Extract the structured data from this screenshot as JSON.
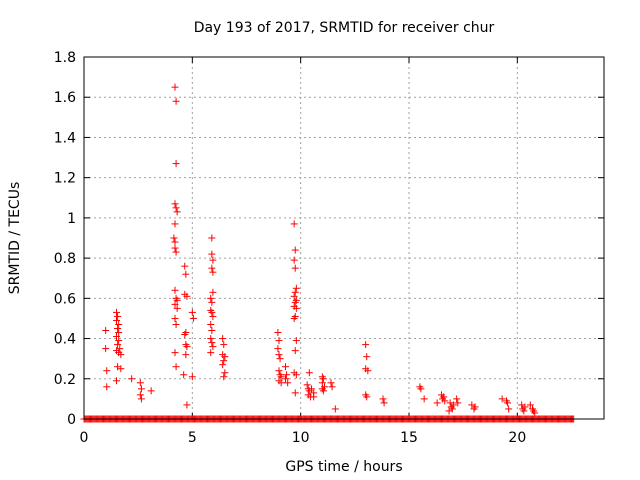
{
  "chart_data": {
    "type": "scatter",
    "title": "Day 193 of 2017, SRMTID for receiver chur",
    "xlabel": "GPS time / hours",
    "ylabel": "SRMTID / TECUs",
    "xlim": [
      0,
      24
    ],
    "ylim": [
      0,
      1.8
    ],
    "xticks": [
      0,
      5,
      10,
      15,
      20
    ],
    "xtick_labels": [
      "0",
      "5",
      "10",
      "15",
      "20"
    ],
    "yticks": [
      0,
      0.2,
      0.4,
      0.6,
      0.8,
      1.0,
      1.2,
      1.4,
      1.6,
      1.8
    ],
    "ytick_labels": [
      "0",
      "0.2",
      "0.4",
      "0.6",
      "0.8",
      "1",
      "1.2",
      "1.4",
      "1.6",
      "1.8"
    ],
    "grid": true,
    "marker": "+",
    "color": "#ff0000",
    "baseline": {
      "x_start": 0,
      "x_end": 22.6,
      "step": 0.05,
      "y": 0
    },
    "series": [
      {
        "name": "SRMTID",
        "points": [
          [
            1.0,
            0.44
          ],
          [
            1.0,
            0.35
          ],
          [
            1.05,
            0.24
          ],
          [
            1.05,
            0.16
          ],
          [
            1.5,
            0.53
          ],
          [
            1.55,
            0.51
          ],
          [
            1.5,
            0.49
          ],
          [
            1.6,
            0.47
          ],
          [
            1.55,
            0.45
          ],
          [
            1.6,
            0.43
          ],
          [
            1.5,
            0.41
          ],
          [
            1.6,
            0.39
          ],
          [
            1.55,
            0.37
          ],
          [
            1.65,
            0.35
          ],
          [
            1.5,
            0.34
          ],
          [
            1.6,
            0.33
          ],
          [
            1.7,
            0.32
          ],
          [
            1.55,
            0.26
          ],
          [
            1.7,
            0.25
          ],
          [
            1.5,
            0.19
          ],
          [
            2.2,
            0.2
          ],
          [
            2.6,
            0.18
          ],
          [
            2.65,
            0.15
          ],
          [
            2.6,
            0.12
          ],
          [
            2.65,
            0.1
          ],
          [
            3.1,
            0.14
          ],
          [
            4.2,
            1.65
          ],
          [
            4.25,
            1.58
          ],
          [
            4.25,
            1.27
          ],
          [
            4.2,
            1.07
          ],
          [
            4.25,
            1.05
          ],
          [
            4.3,
            1.03
          ],
          [
            4.2,
            0.97
          ],
          [
            4.15,
            0.9
          ],
          [
            4.2,
            0.88
          ],
          [
            4.2,
            0.85
          ],
          [
            4.25,
            0.83
          ],
          [
            4.2,
            0.64
          ],
          [
            4.25,
            0.6
          ],
          [
            4.2,
            0.57
          ],
          [
            4.3,
            0.55
          ],
          [
            4.2,
            0.5
          ],
          [
            4.25,
            0.47
          ],
          [
            4.2,
            0.33
          ],
          [
            4.25,
            0.26
          ],
          [
            4.3,
            0.59
          ],
          [
            4.65,
            0.76
          ],
          [
            4.7,
            0.72
          ],
          [
            4.65,
            0.62
          ],
          [
            4.75,
            0.61
          ],
          [
            4.7,
            0.43
          ],
          [
            4.65,
            0.42
          ],
          [
            4.7,
            0.37
          ],
          [
            4.75,
            0.36
          ],
          [
            4.7,
            0.32
          ],
          [
            4.6,
            0.22
          ],
          [
            4.75,
            0.07
          ],
          [
            5.0,
            0.53
          ],
          [
            5.05,
            0.5
          ],
          [
            5.0,
            0.21
          ],
          [
            5.9,
            0.9
          ],
          [
            5.9,
            0.82
          ],
          [
            5.95,
            0.79
          ],
          [
            5.9,
            0.75
          ],
          [
            5.95,
            0.73
          ],
          [
            5.95,
            0.63
          ],
          [
            5.85,
            0.6
          ],
          [
            5.9,
            0.58
          ],
          [
            5.85,
            0.54
          ],
          [
            5.9,
            0.53
          ],
          [
            5.95,
            0.51
          ],
          [
            5.85,
            0.47
          ],
          [
            5.9,
            0.44
          ],
          [
            5.85,
            0.4
          ],
          [
            5.9,
            0.38
          ],
          [
            5.95,
            0.36
          ],
          [
            5.85,
            0.33
          ],
          [
            6.4,
            0.4
          ],
          [
            6.45,
            0.37
          ],
          [
            6.4,
            0.32
          ],
          [
            6.5,
            0.31
          ],
          [
            6.45,
            0.29
          ],
          [
            6.4,
            0.27
          ],
          [
            6.5,
            0.23
          ],
          [
            6.45,
            0.21
          ],
          [
            8.95,
            0.43
          ],
          [
            9.0,
            0.39
          ],
          [
            8.95,
            0.35
          ],
          [
            9.0,
            0.32
          ],
          [
            9.05,
            0.3
          ],
          [
            9.0,
            0.24
          ],
          [
            9.05,
            0.22
          ],
          [
            9.1,
            0.21
          ],
          [
            9.0,
            0.19
          ],
          [
            9.1,
            0.18
          ],
          [
            9.3,
            0.26
          ],
          [
            9.35,
            0.22
          ],
          [
            9.3,
            0.2
          ],
          [
            9.4,
            0.18
          ],
          [
            9.7,
            0.97
          ],
          [
            9.75,
            0.84
          ],
          [
            9.7,
            0.79
          ],
          [
            9.75,
            0.75
          ],
          [
            9.8,
            0.65
          ],
          [
            9.75,
            0.63
          ],
          [
            9.7,
            0.61
          ],
          [
            9.8,
            0.59
          ],
          [
            9.75,
            0.58
          ],
          [
            9.7,
            0.56
          ],
          [
            9.8,
            0.55
          ],
          [
            9.75,
            0.51
          ],
          [
            9.7,
            0.5
          ],
          [
            9.8,
            0.39
          ],
          [
            9.75,
            0.34
          ],
          [
            9.7,
            0.23
          ],
          [
            9.8,
            0.22
          ],
          [
            9.75,
            0.13
          ],
          [
            10.4,
            0.23
          ],
          [
            10.3,
            0.17
          ],
          [
            10.35,
            0.15
          ],
          [
            10.4,
            0.14
          ],
          [
            10.35,
            0.12
          ],
          [
            10.45,
            0.11
          ],
          [
            10.5,
            0.15
          ],
          [
            10.6,
            0.13
          ],
          [
            10.6,
            0.11
          ],
          [
            11.0,
            0.21
          ],
          [
            11.05,
            0.2
          ],
          [
            11.0,
            0.18
          ],
          [
            11.1,
            0.16
          ],
          [
            11.0,
            0.15
          ],
          [
            11.05,
            0.14
          ],
          [
            11.4,
            0.18
          ],
          [
            11.45,
            0.16
          ],
          [
            11.6,
            0.05
          ],
          [
            13.0,
            0.37
          ],
          [
            13.05,
            0.31
          ],
          [
            13.0,
            0.25
          ],
          [
            13.1,
            0.24
          ],
          [
            13.0,
            0.12
          ],
          [
            13.05,
            0.11
          ],
          [
            13.8,
            0.1
          ],
          [
            13.85,
            0.08
          ],
          [
            15.5,
            0.16
          ],
          [
            15.55,
            0.15
          ],
          [
            15.7,
            0.1
          ],
          [
            16.3,
            0.08
          ],
          [
            16.5,
            0.12
          ],
          [
            16.6,
            0.11
          ],
          [
            16.55,
            0.1
          ],
          [
            16.65,
            0.09
          ],
          [
            16.9,
            0.08
          ],
          [
            16.95,
            0.06
          ],
          [
            17.0,
            0.05
          ],
          [
            16.85,
            0.04
          ],
          [
            17.05,
            0.07
          ],
          [
            17.2,
            0.1
          ],
          [
            17.25,
            0.08
          ],
          [
            17.9,
            0.07
          ],
          [
            18.0,
            0.05
          ],
          [
            18.05,
            0.06
          ],
          [
            19.3,
            0.1
          ],
          [
            19.5,
            0.09
          ],
          [
            19.55,
            0.08
          ],
          [
            19.6,
            0.05
          ],
          [
            20.2,
            0.07
          ],
          [
            20.25,
            0.05
          ],
          [
            20.3,
            0.04
          ],
          [
            20.35,
            0.06
          ],
          [
            20.6,
            0.07
          ],
          [
            20.7,
            0.05
          ],
          [
            20.75,
            0.04
          ],
          [
            20.8,
            0.03
          ]
        ]
      }
    ]
  }
}
